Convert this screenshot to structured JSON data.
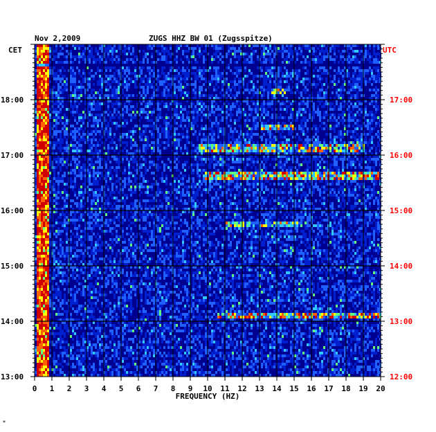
{
  "header": {
    "date": "Nov 2,2009",
    "station": "ZUGS HHZ BW 01 (Zugsspitze)"
  },
  "footer_mark": "*",
  "colors": {
    "background": "#000090",
    "grid": "#000000",
    "utc_text": "#ff0000",
    "cet_text": "#000000"
  },
  "chart_data": {
    "type": "heatmap",
    "title": "ZUGS HHZ BW 01 (Zugsspitze)",
    "subtitle": "Nov 2,2009",
    "xlabel": "FREQUENCY (HZ)",
    "xlim": [
      0,
      20
    ],
    "x_ticks": [
      "0",
      "1",
      "2",
      "3",
      "4",
      "5",
      "6",
      "7",
      "8",
      "9",
      "10",
      "11",
      "12",
      "13",
      "14",
      "15",
      "16",
      "17",
      "18",
      "19",
      "20"
    ],
    "left_axis": {
      "label": "CET",
      "ticks": [
        {
          "label": "13:00",
          "hour": 13
        },
        {
          "label": "14:00",
          "hour": 14
        },
        {
          "label": "15:00",
          "hour": 15
        },
        {
          "label": "16:00",
          "hour": 16
        },
        {
          "label": "17:00",
          "hour": 17
        },
        {
          "label": "18:00",
          "hour": 18
        }
      ]
    },
    "right_axis": {
      "label": "UTC",
      "ticks": [
        {
          "label": "12:00",
          "hour": 12
        },
        {
          "label": "13:00",
          "hour": 13
        },
        {
          "label": "14:00",
          "hour": 14
        },
        {
          "label": "15:00",
          "hour": 15
        },
        {
          "label": "16:00",
          "hour": 16
        },
        {
          "label": "17:00",
          "hour": 17
        }
      ]
    },
    "cet_range": [
      13.0,
      19.0
    ],
    "colormap": [
      "#000090",
      "#0020d0",
      "#2060ff",
      "#30c8ff",
      "#60ff80",
      "#ffff00",
      "#ff6000",
      "#d00000"
    ],
    "features": [
      {
        "name": "low-frequency band",
        "freq_range": [
          0.1,
          0.8
        ],
        "hour_range": [
          13.0,
          19.0
        ],
        "intensity": 0.85
      },
      {
        "name": "event",
        "freq_range": [
          9.8,
          19.9
        ],
        "hour": 16.62,
        "intensity": 0.9
      },
      {
        "name": "event",
        "freq_range": [
          9.5,
          19.0
        ],
        "hour": 17.13,
        "intensity": 0.75
      },
      {
        "name": "event",
        "freq_range": [
          10.5,
          20.0
        ],
        "hour": 14.1,
        "intensity": 0.8
      },
      {
        "name": "event",
        "freq_range": [
          11.0,
          15.5
        ],
        "hour": 15.75,
        "intensity": 0.6
      },
      {
        "name": "event",
        "freq_range": [
          13.0,
          15.0
        ],
        "hour": 17.5,
        "intensity": 0.7
      },
      {
        "name": "event",
        "freq_range": [
          13.5,
          14.5
        ],
        "hour": 18.15,
        "intensity": 0.7
      }
    ],
    "quiet_rows": [
      16.5,
      16.0,
      14.5,
      18.62
    ],
    "grid": true
  }
}
